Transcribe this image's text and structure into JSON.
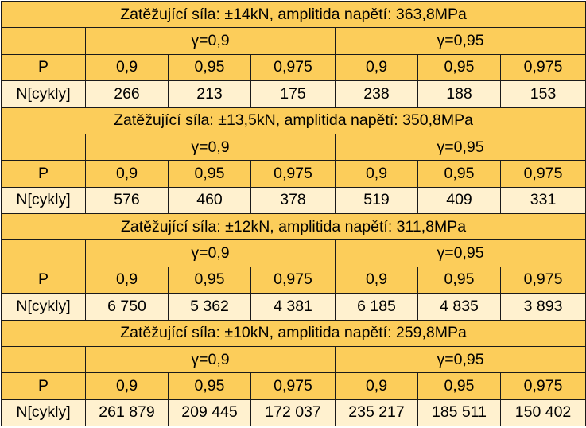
{
  "labels": {
    "p": "P",
    "n": "N[cykly]",
    "gamma_a": "γ=0,9",
    "gamma_b": "γ=0,95"
  },
  "p_values": [
    "0,9",
    "0,95",
    "0,975",
    "0,9",
    "0,95",
    "0,975"
  ],
  "blocks": [
    {
      "title": "Zatěžující síla: ±14kN,  amplitida napětí: 363,8MPa",
      "n": [
        "266",
        "213",
        "175",
        "238",
        "188",
        "153"
      ]
    },
    {
      "title": "Zatěžující síla: ±13,5kN,  amplitida napětí: 350,8MPa",
      "n": [
        "576",
        "460",
        "378",
        "519",
        "409",
        "331"
      ]
    },
    {
      "title": "Zatěžující síla: ±12kN,  amplitida napětí: 311,8MPa",
      "n": [
        "6 750",
        "5 362",
        "4 381",
        "6 185",
        "4 835",
        "3 893"
      ]
    },
    {
      "title": "Zatěžující síla: ±10kN,  amplitida napětí: 259,8MPa",
      "n": [
        "261 879",
        "209 445",
        "172 037",
        "235 217",
        "185 511",
        "150 402"
      ]
    }
  ]
}
